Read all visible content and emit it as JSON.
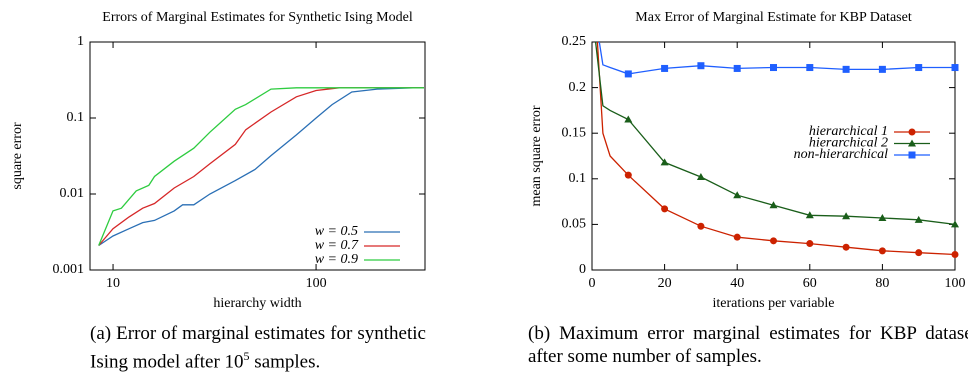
{
  "chart_data": [
    {
      "type": "line",
      "title": "Errors of Marginal Estimates for Synthetic Ising Model",
      "x_label": "hierarchy width",
      "y_label": "square error",
      "xscale": "log",
      "yscale": "log",
      "xlim": [
        7.7,
        344
      ],
      "ylim": [
        0.001,
        1
      ],
      "xticks": [
        10,
        100
      ],
      "yticks": [
        0.001,
        0.01,
        0.1,
        1
      ],
      "legend": "lower right",
      "series": [
        {
          "name": "w = 0.5",
          "color": "#2a6fb5",
          "x": [
            8.5,
            10,
            12,
            14,
            16,
            20,
            22,
            25,
            30,
            40,
            50,
            60,
            80,
            100,
            120,
            150,
            200,
            300,
            340
          ],
          "values": [
            0.0021,
            0.0028,
            0.0035,
            0.0042,
            0.0045,
            0.006,
            0.0072,
            0.0072,
            0.01,
            0.015,
            0.021,
            0.032,
            0.06,
            0.1,
            0.15,
            0.22,
            0.24,
            0.25,
            0.25
          ]
        },
        {
          "name": "w = 0.7",
          "color": "#d62728",
          "x": [
            8.5,
            10,
            12,
            14,
            16,
            20,
            25,
            30,
            40,
            45,
            60,
            80,
            100,
            130,
            340
          ],
          "values": [
            0.0021,
            0.0035,
            0.005,
            0.0065,
            0.0075,
            0.012,
            0.017,
            0.025,
            0.045,
            0.07,
            0.12,
            0.19,
            0.23,
            0.25,
            0.25
          ]
        },
        {
          "name": "w = 0.9",
          "color": "#2ecc40",
          "x": [
            8.5,
            10,
            11,
            13,
            15,
            16,
            20,
            25,
            30,
            40,
            45,
            60,
            80,
            340
          ],
          "values": [
            0.0021,
            0.006,
            0.0065,
            0.011,
            0.013,
            0.017,
            0.027,
            0.04,
            0.065,
            0.13,
            0.15,
            0.24,
            0.25,
            0.25
          ]
        }
      ]
    },
    {
      "type": "line",
      "title": "Max Error of Marginal Estimate for KBP Dataset",
      "x_label": "iterations per variable",
      "y_label": "mean square error",
      "xlim": [
        0,
        100
      ],
      "ylim": [
        0,
        0.25
      ],
      "xticks": [
        0,
        20,
        40,
        60,
        80,
        100
      ],
      "yticks": [
        0,
        0.05,
        0.1,
        0.15,
        0.2,
        0.25
      ],
      "legend": "upper right",
      "series": [
        {
          "name": "hierarchical 1",
          "color": "#cc2200",
          "marker": "circle",
          "x": [
            1.5,
            3,
            5,
            10,
            20,
            30,
            40,
            50,
            60,
            70,
            80,
            90,
            100
          ],
          "values": [
            0.25,
            0.15,
            0.125,
            0.104,
            0.067,
            0.048,
            0.036,
            0.032,
            0.029,
            0.025,
            0.021,
            0.019,
            0.017
          ]
        },
        {
          "name": "hierarchical 2",
          "color": "#1a5e1a",
          "marker": "triangle",
          "x": [
            1,
            3,
            5,
            10,
            20,
            30,
            40,
            50,
            60,
            70,
            80,
            90,
            100
          ],
          "values": [
            0.25,
            0.18,
            0.175,
            0.165,
            0.118,
            0.102,
            0.082,
            0.071,
            0.06,
            0.059,
            0.057,
            0.055,
            0.05
          ]
        },
        {
          "name": "non-hierarchical",
          "color": "#1f5fff",
          "marker": "square",
          "x": [
            2,
            3,
            5,
            10,
            20,
            30,
            40,
            50,
            60,
            70,
            80,
            90,
            100
          ],
          "values": [
            0.25,
            0.225,
            0.222,
            0.215,
            0.221,
            0.224,
            0.221,
            0.222,
            0.222,
            0.22,
            0.22,
            0.222,
            0.222
          ]
        }
      ]
    }
  ],
  "captions": [
    {
      "before": "(a) Error of marginal estimates for synthetic Ising model after 10",
      "sup": "5",
      "after": " samples."
    },
    {
      "text": "(b) Maximum error marginal estimates for KBP dataset after some number of samples."
    }
  ]
}
